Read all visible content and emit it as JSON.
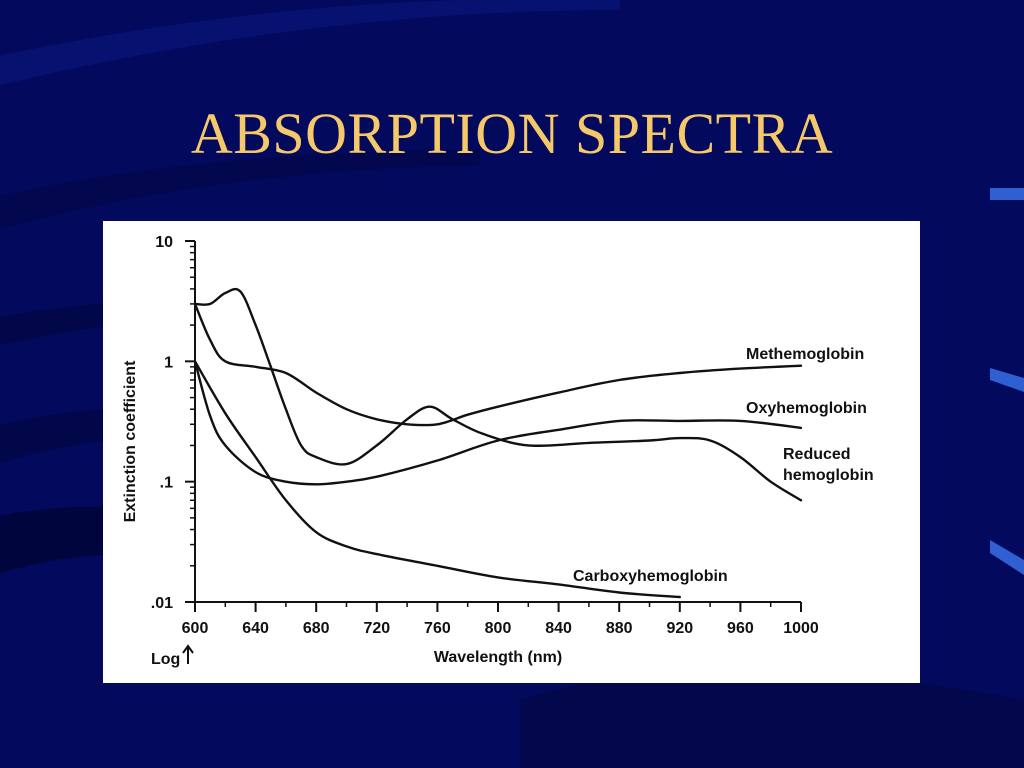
{
  "slide": {
    "title": "ABSORPTION SPECTRA",
    "title_color": "#f5c869",
    "background_color": "#030a5e",
    "accent_color": "#2f5fd0"
  },
  "chart_data": {
    "type": "line",
    "title": "",
    "xlabel": "Wavelength (nm)",
    "ylabel": "Extinction coefficient",
    "y_scale": "log",
    "y_scale_note": "Log",
    "xlim": [
      600,
      1000
    ],
    "ylim": [
      0.01,
      10
    ],
    "x_ticks": [
      600,
      640,
      680,
      720,
      760,
      800,
      840,
      880,
      920,
      960,
      1000
    ],
    "x_tick_labels": [
      "600",
      "640",
      "680",
      "720",
      "760",
      "800",
      "840",
      "880",
      "920",
      "960",
      "1000"
    ],
    "y_ticks": [
      0.01,
      0.1,
      1,
      10
    ],
    "y_tick_labels": [
      ".01",
      ".1",
      "1",
      "10"
    ],
    "grid": false,
    "legend": "inline labels at right end of curves",
    "series": [
      {
        "name": "Methemoglobin",
        "x": [
          600,
          610,
          620,
          640,
          660,
          680,
          700,
          720,
          740,
          760,
          780,
          800,
          840,
          880,
          920,
          960,
          1000
        ],
        "y": [
          3.0,
          1.5,
          1.0,
          0.9,
          0.8,
          0.55,
          0.4,
          0.33,
          0.3,
          0.3,
          0.36,
          0.42,
          0.55,
          0.7,
          0.8,
          0.87,
          0.92
        ]
      },
      {
        "name": "Oxyhemoglobin",
        "x": [
          600,
          610,
          620,
          640,
          660,
          680,
          700,
          720,
          760,
          800,
          840,
          880,
          920,
          960,
          1000
        ],
        "y": [
          1.0,
          0.35,
          0.2,
          0.12,
          0.1,
          0.095,
          0.1,
          0.11,
          0.15,
          0.22,
          0.27,
          0.32,
          0.32,
          0.32,
          0.28
        ]
      },
      {
        "name": "Reduced hemoglobin",
        "x": [
          600,
          610,
          620,
          630,
          640,
          650,
          660,
          670,
          680,
          700,
          720,
          740,
          755,
          770,
          790,
          820,
          860,
          900,
          920,
          940,
          960,
          980,
          1000
        ],
        "y": [
          3.0,
          3.0,
          3.7,
          3.8,
          2.0,
          0.9,
          0.4,
          0.2,
          0.16,
          0.14,
          0.2,
          0.33,
          0.42,
          0.33,
          0.25,
          0.2,
          0.21,
          0.22,
          0.23,
          0.22,
          0.16,
          0.1,
          0.07
        ]
      },
      {
        "name": "Carboxyhemoglobin",
        "x": [
          600,
          620,
          640,
          660,
          680,
          700,
          720,
          760,
          800,
          840,
          880,
          920
        ],
        "y": [
          1.0,
          0.37,
          0.16,
          0.07,
          0.038,
          0.029,
          0.025,
          0.02,
          0.016,
          0.014,
          0.012,
          0.011
        ]
      }
    ]
  }
}
